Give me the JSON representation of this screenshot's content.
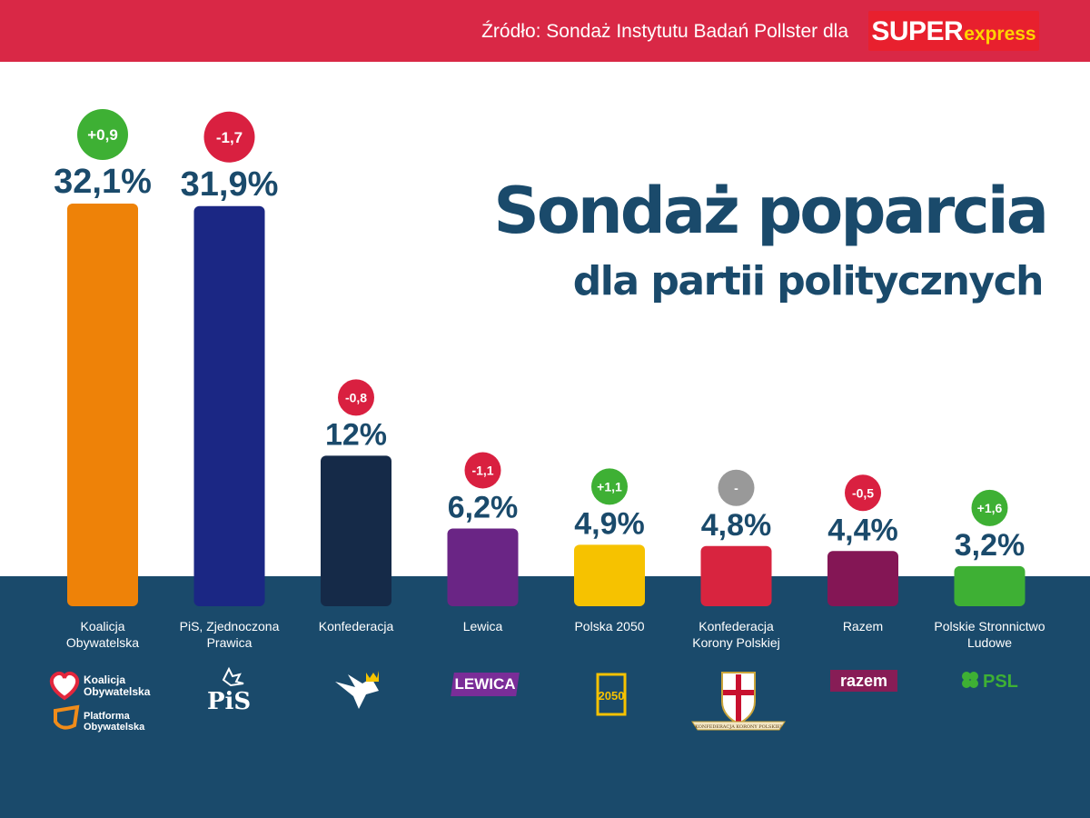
{
  "header": {
    "source_text": "Źródło: Sondaż Instytutu Badań Pollster dla",
    "brand_super": "SUPER",
    "brand_express": "express",
    "accent": "#d92846"
  },
  "chart_data": {
    "type": "bar",
    "title": "Sondaż poparcia",
    "subtitle": "dla partii politycznych",
    "ylim": [
      0,
      35
    ],
    "categories": [
      "Koalicja Obywatelska",
      "PiS, Zjednoczona Prawica",
      "Konfederacja",
      "Lewica",
      "Polska 2050",
      "Konfederacja Korony Polskiej",
      "Razem",
      "Polskie Stronnictwo Ludowe"
    ],
    "values": [
      32.1,
      31.9,
      12,
      6.2,
      4.9,
      4.8,
      4.4,
      3.2
    ],
    "value_labels": [
      "32,1%",
      "31,9%",
      "12%",
      "6,2%",
      "4,9%",
      "4,8%",
      "4,4%",
      "3,2%"
    ],
    "changes": [
      "+0,9",
      "-1,7",
      "-0,8",
      "-1,1",
      "+1,1",
      "-",
      "-0,5",
      "+1,6"
    ],
    "change_types": [
      "up",
      "down",
      "down",
      "down",
      "up",
      "none",
      "down",
      "up"
    ],
    "colors": [
      "#ee8208",
      "#1b2784",
      "#152a48",
      "#6a2585",
      "#f6c200",
      "#d8243f",
      "#841655",
      "#3eb034"
    ]
  },
  "labels": {
    "names": [
      [
        "Koalicja",
        "Obywatelska"
      ],
      [
        "PiS, Zjednoczona",
        "Prawica"
      ],
      [
        "Konfederacja"
      ],
      [
        "Lewica"
      ],
      [
        "Polska 2050"
      ],
      [
        "Konfederacja",
        "Korony Polskiej"
      ],
      [
        "Razem"
      ],
      [
        "Polskie Stronnictwo",
        "Ludowe"
      ]
    ]
  },
  "logos": {
    "ko_line1": "Koalicja",
    "ko_line2": "Obywatelska",
    "po_line1": "Platforma",
    "po_line2": "Obywatelska",
    "pis": "PiS",
    "lewica": "LEWICA",
    "polska2050": "2050",
    "kkp_ribbon": "KONFEDERACJA KORONY POLSKIEJ",
    "razem": "razem",
    "psl": "PSL"
  },
  "colors": {
    "navy": "#1a4a6b",
    "up": "#3eb034",
    "down": "#d92040",
    "none": "#999999"
  }
}
